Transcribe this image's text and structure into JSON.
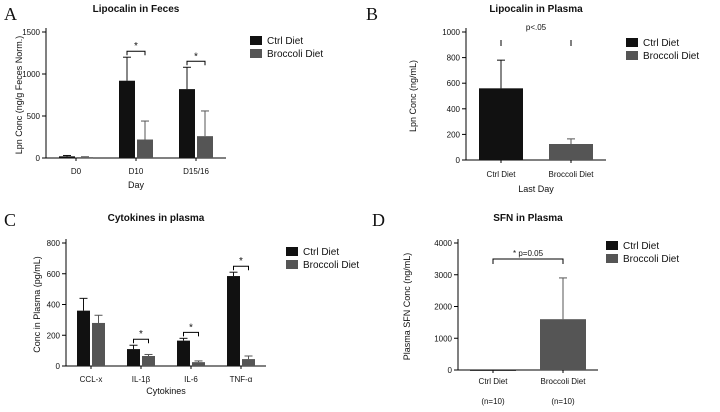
{
  "colors": {
    "ctrl": "#111111",
    "broccoli": "#555555",
    "axis": "#000000"
  },
  "chart_data": [
    {
      "panel": "A",
      "type": "bar",
      "title": "Lipocalin in Feces",
      "ylabel": "Lpn Conc (ng/g Feces Norm.)",
      "xlabel": "Day",
      "categories": [
        "D0",
        "D10",
        "D15/16"
      ],
      "ylim": [
        0,
        1500
      ],
      "yticks": [
        0,
        500,
        1000,
        1500
      ],
      "series": [
        {
          "name": "Ctrl Diet",
          "values": [
            20,
            920,
            820
          ],
          "errors": [
            10,
            280,
            260
          ]
        },
        {
          "name": "Broccoli Diet",
          "values": [
            10,
            220,
            260
          ],
          "errors": [
            5,
            220,
            300
          ]
        }
      ],
      "annotations": [
        {
          "category": 1,
          "text": "*"
        },
        {
          "category": 2,
          "text": "*"
        }
      ],
      "legend": "right"
    },
    {
      "panel": "B",
      "type": "bar",
      "title": "Lipocalin in Plasma",
      "ylabel": "Lpn Conc (ng/mL)",
      "xlabel": "Last Day",
      "categories": [
        "Ctrl Diet",
        "Broccoli Diet"
      ],
      "ylim": [
        0,
        1000
      ],
      "yticks": [
        0,
        200,
        400,
        600,
        800,
        1000
      ],
      "series": [
        {
          "name": "Ctrl Diet",
          "values": [
            560,
            null
          ],
          "errors": [
            220,
            null
          ]
        },
        {
          "name": "Broccoli Diet",
          "values": [
            null,
            125
          ],
          "errors": [
            null,
            40
          ]
        }
      ],
      "annotations": [
        {
          "text": "p<.05"
        }
      ],
      "legend": "right"
    },
    {
      "panel": "C",
      "type": "bar",
      "title": "Cytokines in plasma",
      "ylabel": "Conc in Plasma (pg/mL)",
      "xlabel": "Cytokines",
      "categories": [
        "CCL-x",
        "IL-1β",
        "IL-6",
        "TNF-α"
      ],
      "ylim": [
        0,
        800
      ],
      "yticks": [
        0,
        200,
        400,
        600,
        800
      ],
      "series": [
        {
          "name": "Ctrl Diet",
          "values": [
            360,
            110,
            165,
            585
          ],
          "errors": [
            80,
            25,
            15,
            25
          ]
        },
        {
          "name": "Broccoli Diet",
          "values": [
            280,
            65,
            25,
            45
          ],
          "errors": [
            50,
            10,
            8,
            20
          ]
        }
      ],
      "annotations": [
        {
          "category": 1,
          "text": "*"
        },
        {
          "category": 2,
          "text": "*"
        },
        {
          "category": 3,
          "text": "*"
        }
      ],
      "legend": "right"
    },
    {
      "panel": "D",
      "type": "bar",
      "title": "SFN in Plasma",
      "ylabel": "Plasma SFN Conc (ng/mL)",
      "xlabel": "",
      "categories": [
        "Ctrl Diet",
        "Broccoli Diet"
      ],
      "sublabels": [
        "(n=10)",
        "(n=10)"
      ],
      "ylim": [
        0,
        4000
      ],
      "yticks": [
        0,
        1000,
        2000,
        3000,
        4000
      ],
      "series": [
        {
          "name": "Ctrl Diet",
          "values": [
            5,
            null
          ],
          "errors": [
            0,
            null
          ]
        },
        {
          "name": "Broccoli Diet",
          "values": [
            null,
            1600
          ],
          "errors": [
            null,
            1300
          ]
        }
      ],
      "annotations": [
        {
          "text": "* p=0.05"
        }
      ],
      "legend": "right"
    }
  ]
}
